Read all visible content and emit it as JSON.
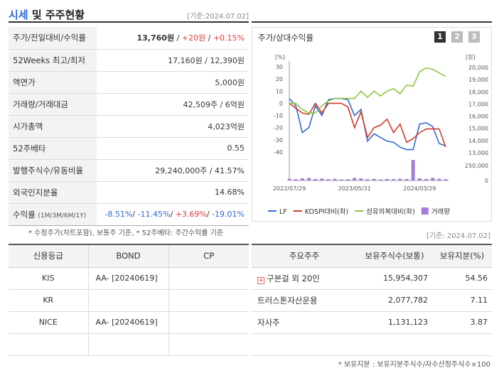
{
  "left_header": {
    "title_accent": "시세",
    "title_rest": " 및 주주현황",
    "date": "[기준:2024.07.02]"
  },
  "quote_rows": [
    {
      "label": "주가/전일대비/수익률",
      "price": "13,760원",
      "change": "+20원",
      "rate": "+0.15%"
    },
    {
      "label": "52Weeks 최고/최저",
      "value": "17,160원 / 12,390원"
    },
    {
      "label": "액면가",
      "value": "5,000원"
    },
    {
      "label": "거래량/거래대금",
      "value": "42,509주 / 6억원"
    },
    {
      "label": "시가총액",
      "value": "4,023억원"
    },
    {
      "label": "52주베타",
      "value": "0.55"
    },
    {
      "label": "발행주식수/유동비율",
      "value": "29,240,000주 / 41.57%"
    },
    {
      "label": "외국인지분율",
      "value": "14.68%"
    },
    {
      "label": "수익률",
      "sub": "(1M/3M/6M/1Y)",
      "r1": "-8.51%",
      "r2": "-11.45%",
      "r3": "+3.69%",
      "r4": "-19.01%"
    }
  ],
  "note1": "* 수정주가(차트포함), 보통주 기준, * 52주베타: 주간수익률 기준",
  "date2": "[기준: 2024.07.02]",
  "chart_panel": {
    "title": "주가/상대수익률",
    "pages": [
      "1",
      "2",
      "3"
    ]
  },
  "chart_data": {
    "type": "line",
    "x": [
      "2022-07",
      "2022-08",
      "2022-09",
      "2022-10",
      "2022-11",
      "2022-12",
      "2023-01",
      "2023-02",
      "2023-03",
      "2023-04",
      "2023-05",
      "2023-06",
      "2023-07",
      "2023-08",
      "2023-09",
      "2023-10",
      "2023-11",
      "2023-12",
      "2024-01",
      "2024-02",
      "2024-03",
      "2024-04",
      "2024-05",
      "2024-06",
      "2024-07"
    ],
    "xticks": [
      "2022/07/29",
      "2023/05/31",
      "2024/03/29"
    ],
    "left_axis": {
      "unit": "[%]",
      "ticks": [
        30,
        20,
        10,
        0,
        -10,
        -20,
        -30,
        -40
      ],
      "ylim": [
        -40,
        30
      ]
    },
    "right_axis": {
      "unit": "[원]",
      "ticks": [
        "20,000",
        "19,000",
        "18,000",
        "17,000",
        "16,000",
        "15,000",
        "14,000",
        "13,000"
      ],
      "ylim": [
        13000,
        20000
      ]
    },
    "volume_axis": {
      "ticks": [
        "250,000",
        "0"
      ],
      "ylim": [
        0,
        250000
      ]
    },
    "series": [
      {
        "name": "LF",
        "axis": "left",
        "color": "#2f6bd3",
        "values": [
          4,
          -2,
          -24,
          -20,
          -2,
          -10,
          3,
          4,
          4,
          3,
          -10,
          -5,
          -31,
          -25,
          -28,
          -31,
          -32,
          -36,
          -38,
          -38,
          -17,
          -16,
          -19,
          -33,
          -35
        ]
      },
      {
        "name": "KOSPI대비(좌)",
        "axis": "left",
        "color": "#d33a2a",
        "values": [
          0,
          -4,
          -8,
          -9,
          0,
          -8,
          0,
          0,
          0,
          -3,
          -20,
          -7,
          -28,
          -20,
          -18,
          -13,
          -24,
          -17,
          -32,
          -29,
          -24,
          -21,
          -21,
          -21,
          -36
        ]
      },
      {
        "name": "섬유의복대비(좌)",
        "axis": "left",
        "color": "#8cc63f",
        "values": [
          0,
          0,
          -5,
          -8,
          -8,
          -2,
          2,
          4,
          4,
          4,
          4,
          10,
          5,
          10,
          6,
          10,
          12,
          8,
          15,
          14,
          26,
          29,
          28,
          25,
          22
        ]
      },
      {
        "name": "거래량",
        "axis": "volume",
        "color": "#a27ed8",
        "values": [
          20000,
          15000,
          25000,
          30000,
          18000,
          22000,
          15000,
          20000,
          12000,
          15000,
          30000,
          25000,
          15000,
          20000,
          12000,
          18000,
          15000,
          20000,
          18000,
          240000,
          25000,
          18000,
          30000,
          20000,
          15000
        ]
      }
    ]
  },
  "credit": {
    "headers": [
      "신용등급",
      "BOND",
      "CP"
    ],
    "rows": [
      {
        "agency": "KIS",
        "bond": "AA-  [20240619]",
        "cp": ""
      },
      {
        "agency": "KR",
        "bond": "",
        "cp": ""
      },
      {
        "agency": "NICE",
        "bond": "AA-  [20240619]",
        "cp": ""
      },
      {
        "agency": "",
        "bond": "",
        "cp": ""
      }
    ]
  },
  "holders": {
    "headers": [
      "주요주주",
      "보유주식수(보통)",
      "보유지분(%)"
    ],
    "rows": [
      {
        "name": "구본걸 외 20인",
        "shares": "15,954,307",
        "pct": "54.56",
        "expandable": true
      },
      {
        "name": "트러스톤자산운용",
        "shares": "2,077,782",
        "pct": "7.11"
      },
      {
        "name": "자사주",
        "shares": "1,131,123",
        "pct": "3.87"
      },
      {
        "name": "",
        "shares": "",
        "pct": ""
      }
    ]
  },
  "note2": "* 보유지분 : 보유지분주식수/자수산정주식수×100"
}
